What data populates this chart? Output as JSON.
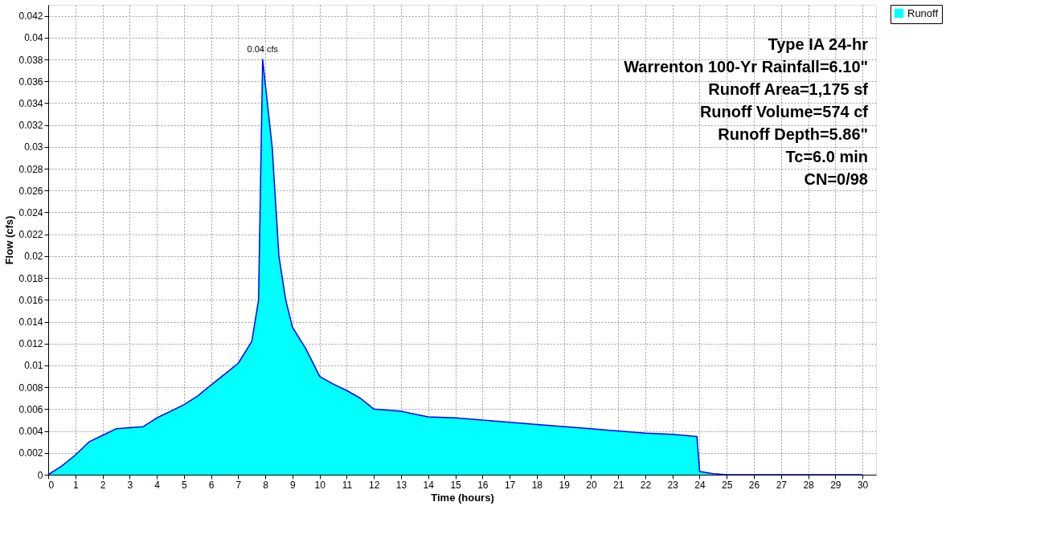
{
  "chart_data": {
    "type": "area",
    "xlabel": "Time  (hours)",
    "ylabel": "Flow  (cfs)",
    "x": [
      0,
      0.5,
      1,
      1.5,
      2,
      2.5,
      3,
      3.5,
      4,
      4.5,
      5,
      5.5,
      6,
      6.5,
      7,
      7.5,
      7.75,
      7.9,
      8.25,
      8.5,
      8.75,
      9,
      9.5,
      10,
      10.5,
      11,
      11.5,
      12,
      13,
      14,
      15,
      16,
      18,
      20,
      22,
      23,
      23.9,
      24,
      24.5,
      25,
      30
    ],
    "series": [
      {
        "name": "Runoff",
        "color": "#00ffff",
        "values": [
          0,
          0.0008,
          0.0018,
          0.003,
          0.0036,
          0.0042,
          0.0043,
          0.0044,
          0.0052,
          0.0058,
          0.0064,
          0.0072,
          0.0082,
          0.0092,
          0.0102,
          0.0122,
          0.016,
          0.038,
          0.03,
          0.02,
          0.016,
          0.0135,
          0.0115,
          0.009,
          0.0083,
          0.0077,
          0.007,
          0.006,
          0.0058,
          0.0053,
          0.0052,
          0.005,
          0.0046,
          0.0042,
          0.0038,
          0.0037,
          0.0035,
          0.0003,
          0.0001,
          0,
          0
        ]
      }
    ],
    "xlim": [
      0,
      30.5
    ],
    "ylim": [
      0,
      0.043
    ],
    "xticks": [
      0,
      1,
      2,
      3,
      4,
      5,
      6,
      7,
      8,
      9,
      10,
      11,
      12,
      13,
      14,
      15,
      16,
      17,
      18,
      19,
      20,
      21,
      22,
      23,
      24,
      25,
      26,
      27,
      28,
      29,
      30
    ],
    "yticks": [
      0,
      0.002,
      0.004,
      0.006,
      0.008,
      0.01,
      0.012,
      0.014,
      0.016,
      0.018,
      0.02,
      0.022,
      0.024,
      0.026,
      0.028,
      0.03,
      0.032,
      0.034,
      0.036,
      0.038,
      0.04,
      0.042
    ],
    "grid": true,
    "legend": "top right",
    "annotations": [
      {
        "text": "0.04 cfs",
        "x": 7.9,
        "y": 0.038
      },
      "Type IA 24-hr",
      "Warrenton 100-Yr Rainfall=6.10\"",
      "Runoff Area=1,175 sf",
      "Runoff Volume=574 cf",
      "Runoff Depth=5.86\"",
      "Tc=6.0 min",
      "CN=0/98"
    ]
  }
}
